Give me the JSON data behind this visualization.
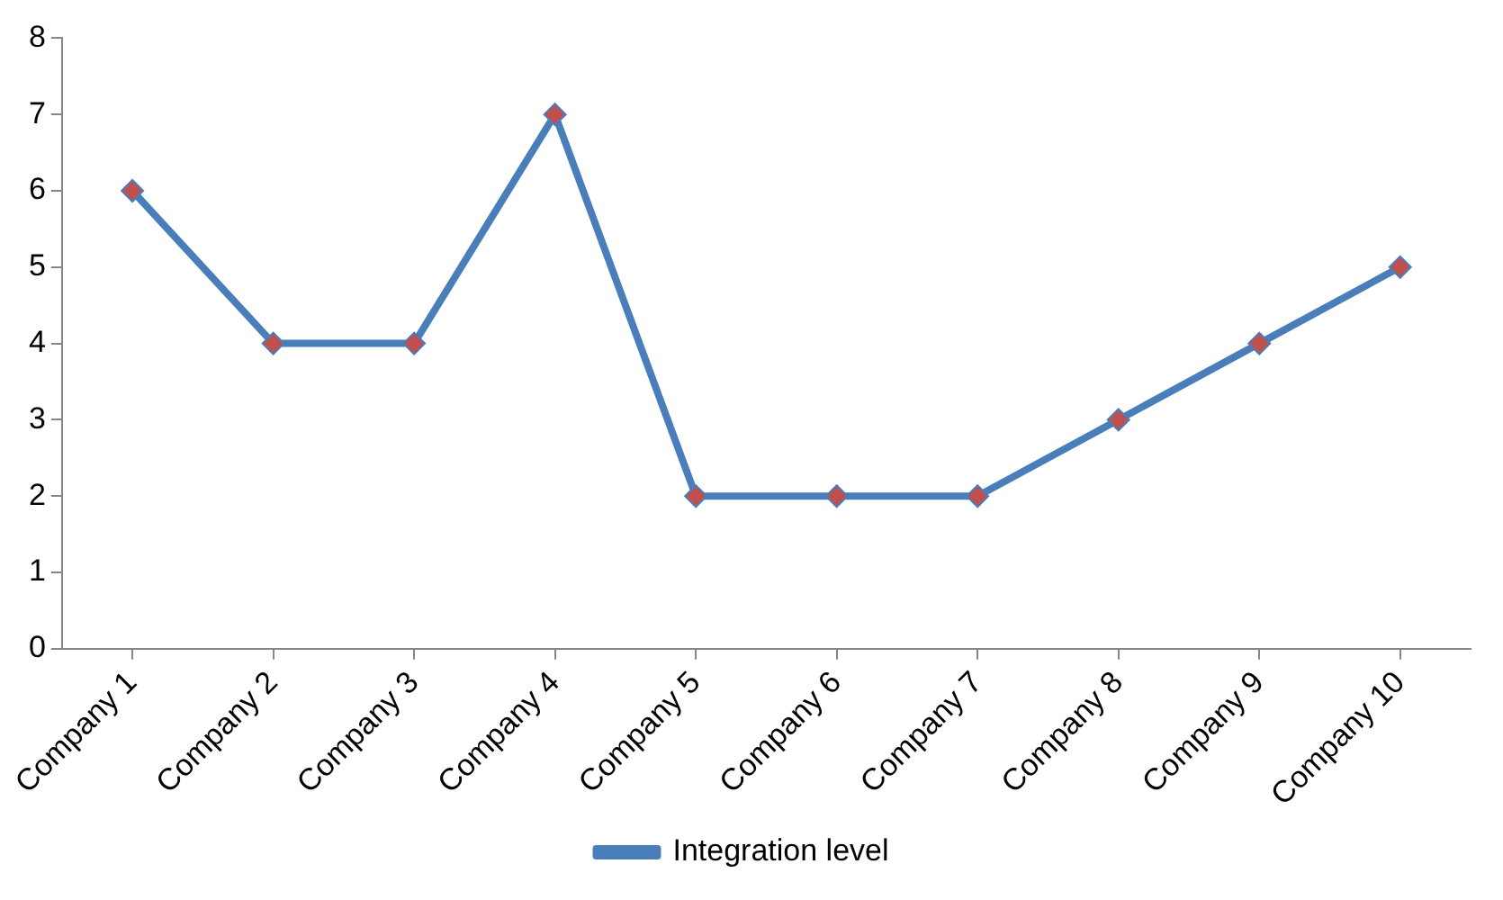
{
  "chart_data": {
    "type": "line",
    "categories": [
      "Company 1",
      "Company 2",
      "Company 3",
      "Company 4",
      "Company 5",
      "Company 6",
      "Company 7",
      "Company 8",
      "Company 9",
      "Company 10"
    ],
    "series": [
      {
        "name": "Integration level",
        "color": "#4a7ebb",
        "values": [
          6,
          4,
          4,
          7,
          2,
          2,
          2,
          3,
          4,
          5
        ]
      }
    ],
    "ylim": [
      0,
      8
    ],
    "yticks": [
      0,
      1,
      2,
      3,
      4,
      5,
      6,
      7,
      8
    ],
    "grid": false,
    "legend": "bottom",
    "marker": "diamond",
    "line_style": "solid"
  }
}
